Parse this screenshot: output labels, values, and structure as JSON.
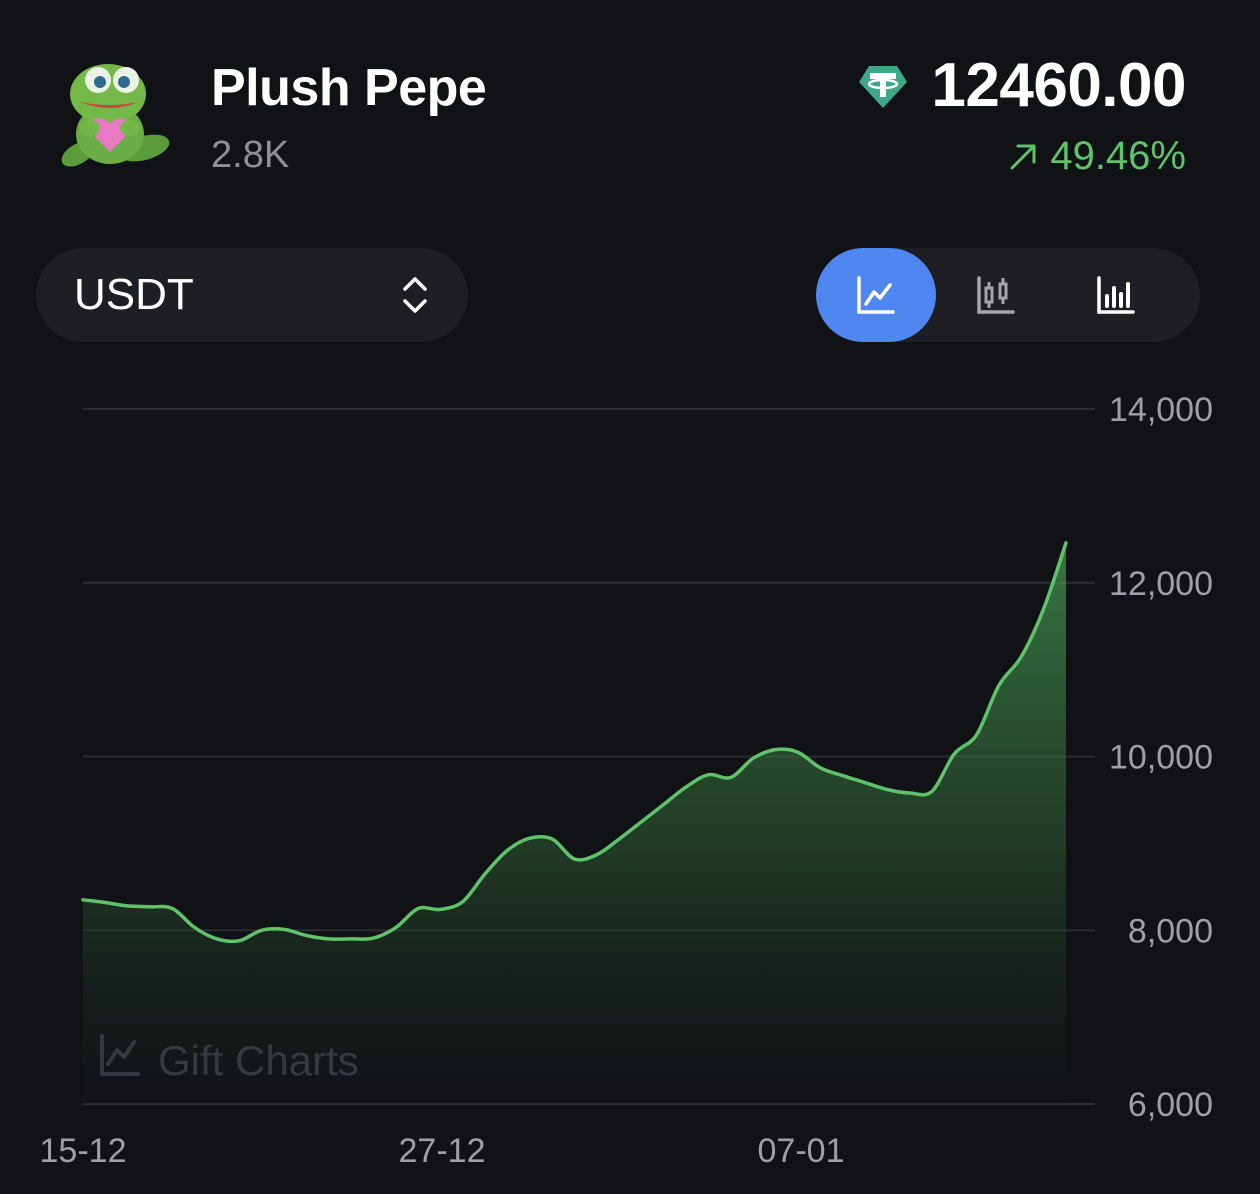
{
  "header": {
    "title": "Plush Pepe",
    "subtitle": "2.8K",
    "price": "12460.00",
    "change": "49.46%",
    "change_color": "#5fc36a",
    "currency_icon": "tether-icon"
  },
  "controls": {
    "currency_label": "USDT",
    "chart_types": [
      {
        "name": "line-chart-icon",
        "active": true
      },
      {
        "name": "candlestick-chart-icon",
        "active": false
      },
      {
        "name": "bar-chart-icon",
        "active": false
      }
    ],
    "accent": "#4f86ef"
  },
  "watermark": "Gift Charts",
  "chart_data": {
    "type": "area",
    "title": "",
    "xlabel": "",
    "ylabel": "",
    "x_ticks": [
      "15-12",
      "27-12",
      "07-01"
    ],
    "y_ticks": [
      "14,000",
      "12,000",
      "10,000",
      "8,000",
      "6,000"
    ],
    "ylim": [
      6000,
      14000
    ],
    "grid": true,
    "line_color": "#5fc36a",
    "series": [
      {
        "values": [
          8350,
          8320,
          8280,
          8270,
          8250,
          8030,
          7900,
          7880,
          8000,
          8010,
          7940,
          7900,
          7900,
          7910,
          8030,
          8250,
          8240,
          8330,
          8650,
          8920,
          9060,
          9050,
          8820,
          8870,
          9050,
          9250,
          9450,
          9650,
          9790,
          9760,
          9980,
          10080,
          10050,
          9870,
          9780,
          9700,
          9620,
          9580,
          9600,
          10030,
          10250,
          10820,
          11150,
          11700,
          12460
        ]
      }
    ]
  }
}
